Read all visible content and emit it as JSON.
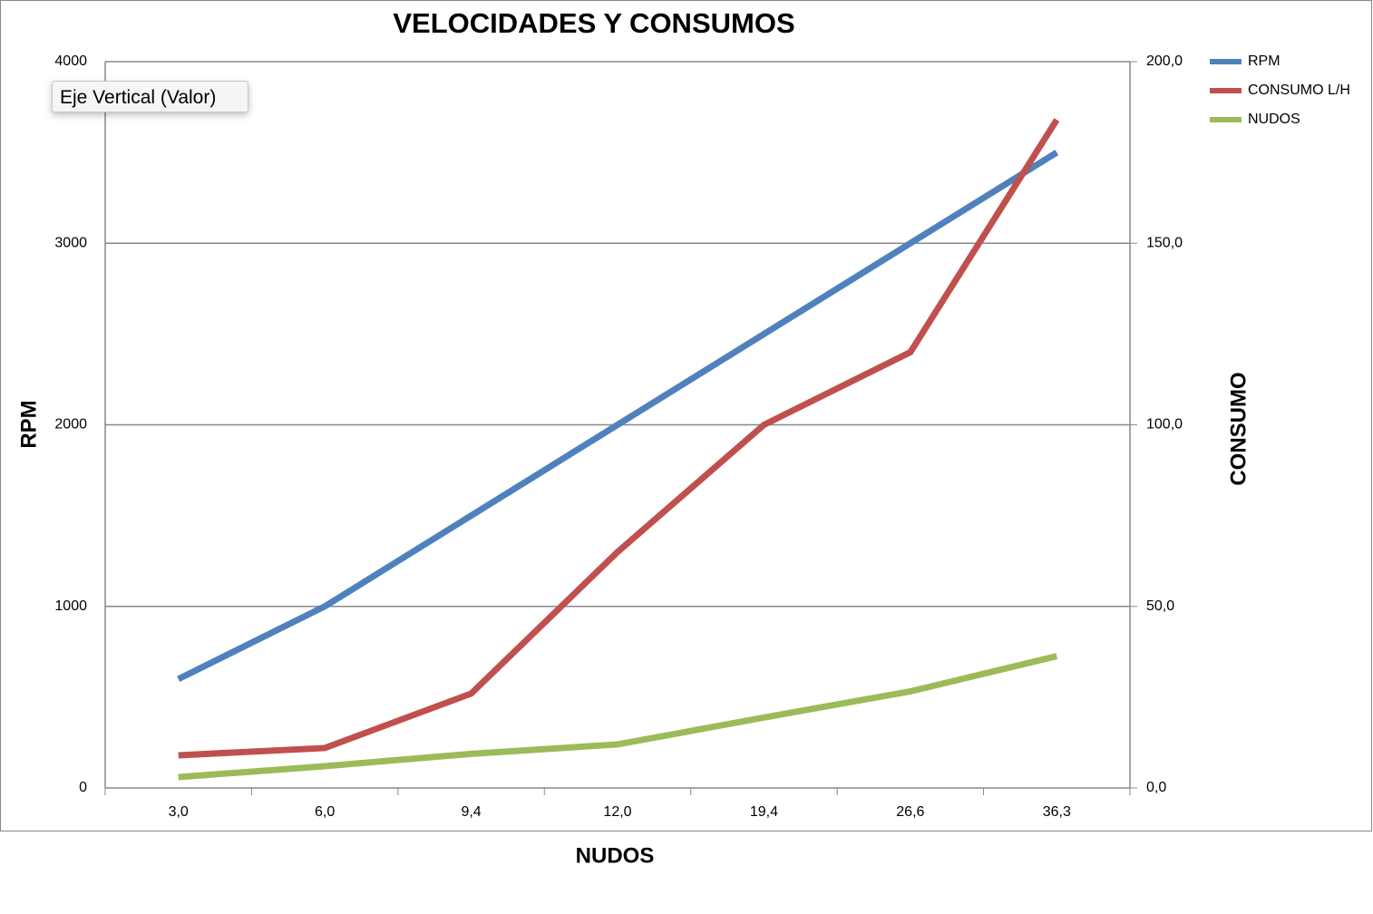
{
  "tooltip": "Eje Vertical (Valor)",
  "chart_data": {
    "type": "line",
    "title": "VELOCIDADES Y CONSUMOS",
    "x_label": "NUDOS",
    "y_label": "RPM",
    "y2_label": "CONSUMO",
    "categories": [
      "3,0",
      "6,0",
      "9,4",
      "12,0",
      "19,4",
      "26,6",
      "36,3"
    ],
    "series": [
      {
        "name": "RPM",
        "color": "#4f81bd",
        "values": [
          600,
          1000,
          1500,
          2000,
          2500,
          3000,
          3500
        ]
      },
      {
        "name": "CONSUMO L/H",
        "color": "#c0504d",
        "axis": "y2",
        "values": [
          9,
          11,
          26,
          65,
          100,
          120,
          184
        ]
      },
      {
        "name": "NUDOS",
        "color": "#9bbb59",
        "axis": "y2",
        "values": [
          3.0,
          6.0,
          9.4,
          12.0,
          19.4,
          26.6,
          36.3
        ]
      }
    ],
    "ylim": [
      0,
      4000
    ],
    "yticks": [
      0,
      1000,
      2000,
      3000,
      4000
    ],
    "y2lim": [
      0,
      200
    ],
    "y2ticks": [
      {
        "value": 0,
        "label": "0,0"
      },
      {
        "value": 50,
        "label": "50,0"
      },
      {
        "value": 100,
        "label": "100,0"
      },
      {
        "value": 150,
        "label": "150,0"
      },
      {
        "value": 200,
        "label": "200,0"
      }
    ],
    "grid": true,
    "legend": "right"
  }
}
